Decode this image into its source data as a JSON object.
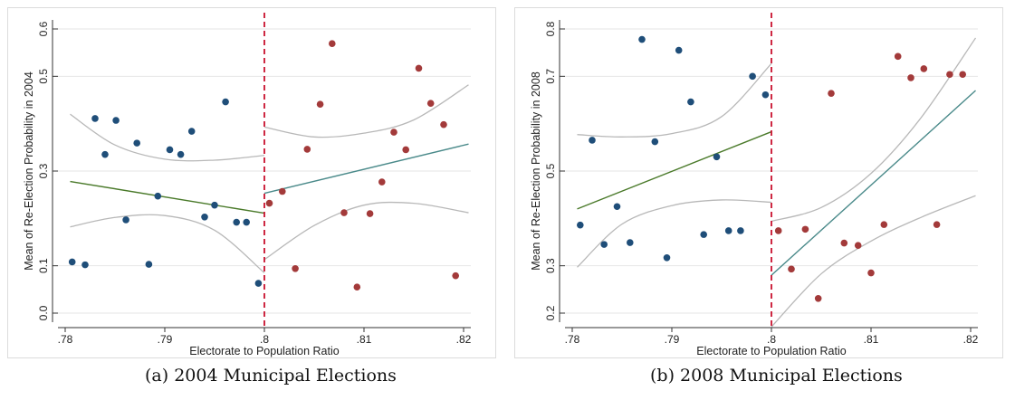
{
  "colors": {
    "left_points": "#1f4e79",
    "right_points": "#a33a3a",
    "left_fit": "#4a7a2a",
    "right_fit": "#4a8a8a",
    "ci": "#b8b8b8",
    "cutoff": "#c8102e",
    "grid": "#e6e6e6"
  },
  "captions": [
    {
      "tag": "(a)",
      "text": "2004 Municipal Elections"
    },
    {
      "tag": "(b)",
      "text": "2008 Municipal Elections"
    }
  ],
  "chart_data": [
    {
      "type": "scatter",
      "title": "",
      "xlabel": "Electorate to Population Ratio",
      "ylabel": "Mean of Re-Election Probability in 2004",
      "xlim": [
        0.78,
        0.82
      ],
      "ylim": [
        0.0,
        0.6
      ],
      "xticks": [
        0.78,
        0.79,
        0.8,
        0.81,
        0.82
      ],
      "xtick_labels": [
        ".78",
        ".79",
        ".8",
        ".81",
        ".82"
      ],
      "yticks": [
        0.0,
        0.1,
        0.3,
        0.5,
        0.6
      ],
      "ytick_labels": [
        "0.0",
        "0.1",
        "0.3",
        "0.5",
        "0.6"
      ],
      "cutoff": 0.8,
      "grid": true,
      "left_points": {
        "x": [
          0.7807,
          0.782,
          0.783,
          0.784,
          0.7851,
          0.7861,
          0.7872,
          0.7884,
          0.7893,
          0.7905,
          0.7916,
          0.7927,
          0.794,
          0.795,
          0.7961,
          0.7972,
          0.7982,
          0.7994
        ],
        "y": [
          0.108,
          0.102,
          0.411,
          0.335,
          0.407,
          0.197,
          0.359,
          0.103,
          0.247,
          0.345,
          0.335,
          0.384,
          0.203,
          0.228,
          0.446,
          0.192,
          0.192,
          0.063
        ]
      },
      "right_points": {
        "x": [
          0.8005,
          0.8018,
          0.8031,
          0.8043,
          0.8056,
          0.8068,
          0.808,
          0.8093,
          0.8106,
          0.8118,
          0.813,
          0.8142,
          0.8155,
          0.8167,
          0.818,
          0.8192
        ],
        "y": [
          0.232,
          0.257,
          0.094,
          0.346,
          0.441,
          0.569,
          0.212,
          0.055,
          0.21,
          0.277,
          0.382,
          0.345,
          0.517,
          0.443,
          0.398,
          0.079
        ]
      },
      "left_fit": {
        "x": [
          0.7805,
          0.8
        ],
        "y": [
          0.278,
          0.211
        ]
      },
      "right_fit": {
        "x": [
          0.8,
          0.8205
        ],
        "y": [
          0.253,
          0.357
        ]
      },
      "left_ci_upper": {
        "x": [
          0.7805,
          0.785,
          0.79,
          0.795,
          0.8
        ],
        "y": [
          0.42,
          0.355,
          0.325,
          0.323,
          0.333
        ]
      },
      "left_ci_lower": {
        "x": [
          0.7805,
          0.785,
          0.79,
          0.795,
          0.8
        ],
        "y": [
          0.182,
          0.202,
          0.206,
          0.175,
          0.085
        ]
      },
      "right_ci_upper": {
        "x": [
          0.8,
          0.805,
          0.81,
          0.815,
          0.8205
        ],
        "y": [
          0.393,
          0.372,
          0.38,
          0.408,
          0.482
        ]
      },
      "right_ci_lower": {
        "x": [
          0.8,
          0.805,
          0.81,
          0.815,
          0.8205
        ],
        "y": [
          0.113,
          0.185,
          0.228,
          0.232,
          0.212
        ]
      }
    },
    {
      "type": "scatter",
      "title": "",
      "xlabel": "Electorate to Population Ratio",
      "ylabel": "Mean of Re-Election Probability in 2008",
      "xlim": [
        0.78,
        0.82
      ],
      "ylim": [
        0.2,
        0.8
      ],
      "xticks": [
        0.78,
        0.79,
        0.8,
        0.81,
        0.82
      ],
      "xtick_labels": [
        ".78",
        ".79",
        ".8",
        ".81",
        ".82"
      ],
      "yticks": [
        0.2,
        0.3,
        0.5,
        0.7,
        0.8
      ],
      "ytick_labels": [
        "0.2",
        "0.3",
        "0.5",
        "0.7",
        "0.8"
      ],
      "cutoff": 0.8,
      "grid": true,
      "left_points": {
        "x": [
          0.7808,
          0.782,
          0.7832,
          0.7845,
          0.7858,
          0.787,
          0.7883,
          0.7895,
          0.7907,
          0.7919,
          0.7932,
          0.7945,
          0.7957,
          0.7969,
          0.7981,
          0.7994
        ],
        "y": [
          0.386,
          0.565,
          0.345,
          0.425,
          0.349,
          0.778,
          0.562,
          0.317,
          0.755,
          0.646,
          0.366,
          0.53,
          0.374,
          0.374,
          0.7,
          0.661
        ]
      },
      "right_points": {
        "x": [
          0.8007,
          0.802,
          0.8034,
          0.8047,
          0.806,
          0.8073,
          0.8087,
          0.81,
          0.8113,
          0.8127,
          0.814,
          0.8153,
          0.8166,
          0.8179,
          0.8192
        ],
        "y": [
          0.374,
          0.293,
          0.377,
          0.231,
          0.664,
          0.348,
          0.343,
          0.285,
          0.387,
          0.742,
          0.697,
          0.716,
          0.387,
          0.704,
          0.704
        ]
      },
      "left_fit": {
        "x": [
          0.7805,
          0.8
        ],
        "y": [
          0.42,
          0.583
        ]
      },
      "right_fit": {
        "x": [
          0.8,
          0.8205
        ],
        "y": [
          0.28,
          0.67
        ]
      },
      "left_ci_upper": {
        "x": [
          0.7805,
          0.785,
          0.79,
          0.795,
          0.8
        ],
        "y": [
          0.577,
          0.572,
          0.579,
          0.615,
          0.727
        ]
      },
      "left_ci_lower": {
        "x": [
          0.7805,
          0.785,
          0.79,
          0.795,
          0.8
        ],
        "y": [
          0.297,
          0.388,
          0.427,
          0.439,
          0.434
        ]
      },
      "right_ci_upper": {
        "x": [
          0.8,
          0.805,
          0.81,
          0.815,
          0.8205
        ],
        "y": [
          0.394,
          0.423,
          0.495,
          0.612,
          0.781
        ]
      },
      "right_ci_lower": {
        "x": [
          0.8,
          0.805,
          0.81,
          0.815,
          0.8205
        ],
        "y": [
          0.171,
          0.283,
          0.352,
          0.402,
          0.448
        ]
      }
    }
  ]
}
